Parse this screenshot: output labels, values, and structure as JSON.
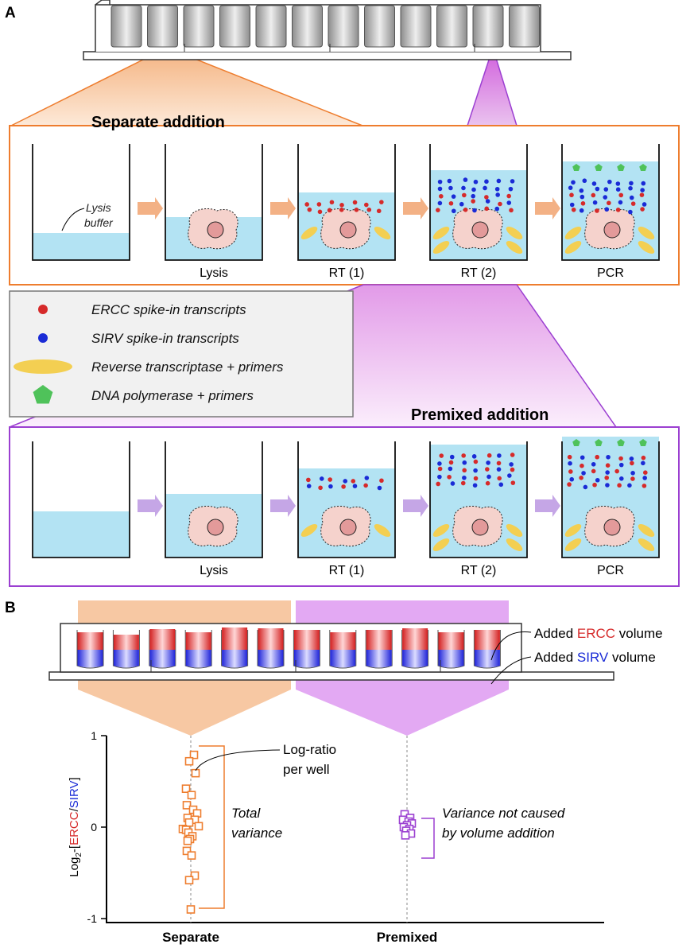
{
  "panel_a": {
    "letter": "A",
    "separate": {
      "title": "Separate addition",
      "annotation": [
        "Lysis",
        "buffer"
      ],
      "steps": [
        "",
        "Lysis",
        "RT (1)",
        "RT (2)",
        "PCR"
      ]
    },
    "premixed": {
      "title": "Premixed addition",
      "steps": [
        "",
        "Lysis",
        "RT (1)",
        "RT (2)",
        "PCR"
      ]
    },
    "legend": [
      {
        "label": "ERCC spike-in transcripts",
        "icon": "red-dot-icon"
      },
      {
        "label": "SIRV spike-in transcripts",
        "icon": "blue-dot-icon"
      },
      {
        "label": "Reverse transcriptase + primers",
        "icon": "yellow-ellipse-icon"
      },
      {
        "label": "DNA polymerase + primers",
        "icon": "green-pentagon-icon"
      }
    ]
  },
  "panel_b": {
    "letter": "B",
    "callouts": {
      "ercc": {
        "prefix": "Added ",
        "key": "ERCC",
        "suffix": " volume"
      },
      "sirv": {
        "prefix": "Added ",
        "key": "SIRV",
        "suffix": " volume"
      }
    },
    "plot_notes": {
      "point_label": [
        "Log-ratio",
        "per well"
      ],
      "total_variance": [
        "Total",
        "variance"
      ],
      "premixed_variance": [
        "Variance not caused",
        "by volume addition"
      ]
    }
  },
  "colors": {
    "ercc": "#d62a2a",
    "sirv": "#1a2bd6",
    "separate": "#ee7d2e",
    "premixed": "#9b3fd1",
    "buffer": "#b3e3f3"
  },
  "chart_data": {
    "type": "scatter",
    "categories": [
      "Separate",
      "Premixed"
    ],
    "ylabel_parts": [
      "Log",
      "2",
      "-[",
      "ERCC",
      "/",
      "SIRV",
      "]"
    ],
    "ylim": [
      -1,
      1
    ],
    "yticks": [
      -1,
      0,
      1
    ],
    "ytick_labels": [
      "-1",
      "0",
      "1"
    ],
    "series": [
      {
        "category": "Separate",
        "values": [
          0.79,
          0.72,
          0.59,
          0.42,
          0.35,
          0.24,
          0.19,
          0.15,
          0.1,
          0.08,
          0.05,
          0.01,
          -0.02,
          -0.03,
          -0.06,
          -0.1,
          -0.13,
          -0.15,
          -0.26,
          -0.31,
          -0.53,
          -0.58,
          -0.9
        ]
      },
      {
        "category": "Premixed",
        "values": [
          0.14,
          0.1,
          0.08,
          0.06,
          0.04,
          0.02,
          0.0,
          -0.02,
          -0.04,
          -0.07,
          -0.09
        ]
      }
    ],
    "grid": false
  }
}
